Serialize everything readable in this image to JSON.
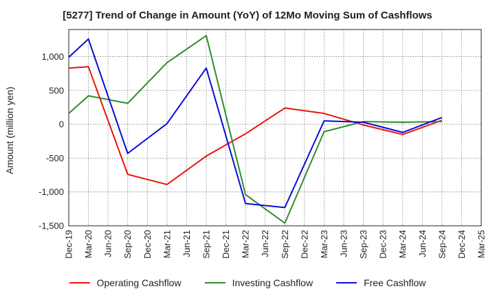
{
  "chart_data": {
    "type": "line",
    "title": "[5277]  Trend of Change in Amount (YoY) of 12Mo Moving Sum of Cashflows",
    "xlabel": "",
    "ylabel": "Amount (million yen)",
    "categories": [
      "Dec-19",
      "Mar-20",
      "Jun-20",
      "Sep-20",
      "Dec-20",
      "Mar-21",
      "Jun-21",
      "Sep-21",
      "Dec-21",
      "Mar-22",
      "Jun-22",
      "Sep-22",
      "Dec-22",
      "Mar-23",
      "Jun-23",
      "Sep-23",
      "Dec-23",
      "Mar-24",
      "Jun-24",
      "Sep-24",
      "Dec-24",
      "Mar-25"
    ],
    "ylim": [
      -1500,
      1400
    ],
    "yticks": [
      -1500,
      -1000,
      -500,
      0,
      500,
      1000
    ],
    "ytick_labels": [
      "-1,500",
      "-1,000",
      "-500",
      "0",
      "500",
      "1,000"
    ],
    "grid": true,
    "legend_position": "bottom",
    "series": [
      {
        "name": "Operating Cashflow",
        "color": "#e8140f",
        "values": [
          830,
          850,
          null,
          -740,
          null,
          -890,
          null,
          -470,
          null,
          -140,
          null,
          240,
          null,
          160,
          null,
          -10,
          null,
          -150,
          null,
          60,
          null,
          null
        ]
      },
      {
        "name": "Investing Cashflow",
        "color": "#2e8b2e",
        "values": [
          160,
          420,
          null,
          310,
          null,
          910,
          null,
          1310,
          null,
          -1040,
          null,
          -1460,
          null,
          -110,
          null,
          40,
          null,
          30,
          null,
          40,
          null,
          null
        ]
      },
      {
        "name": "Free Cashflow",
        "color": "#0a0ad8",
        "values": [
          990,
          1260,
          null,
          -430,
          null,
          10,
          null,
          830,
          null,
          -1170,
          null,
          -1230,
          null,
          50,
          null,
          30,
          null,
          -120,
          null,
          100,
          null,
          null
        ]
      }
    ]
  }
}
